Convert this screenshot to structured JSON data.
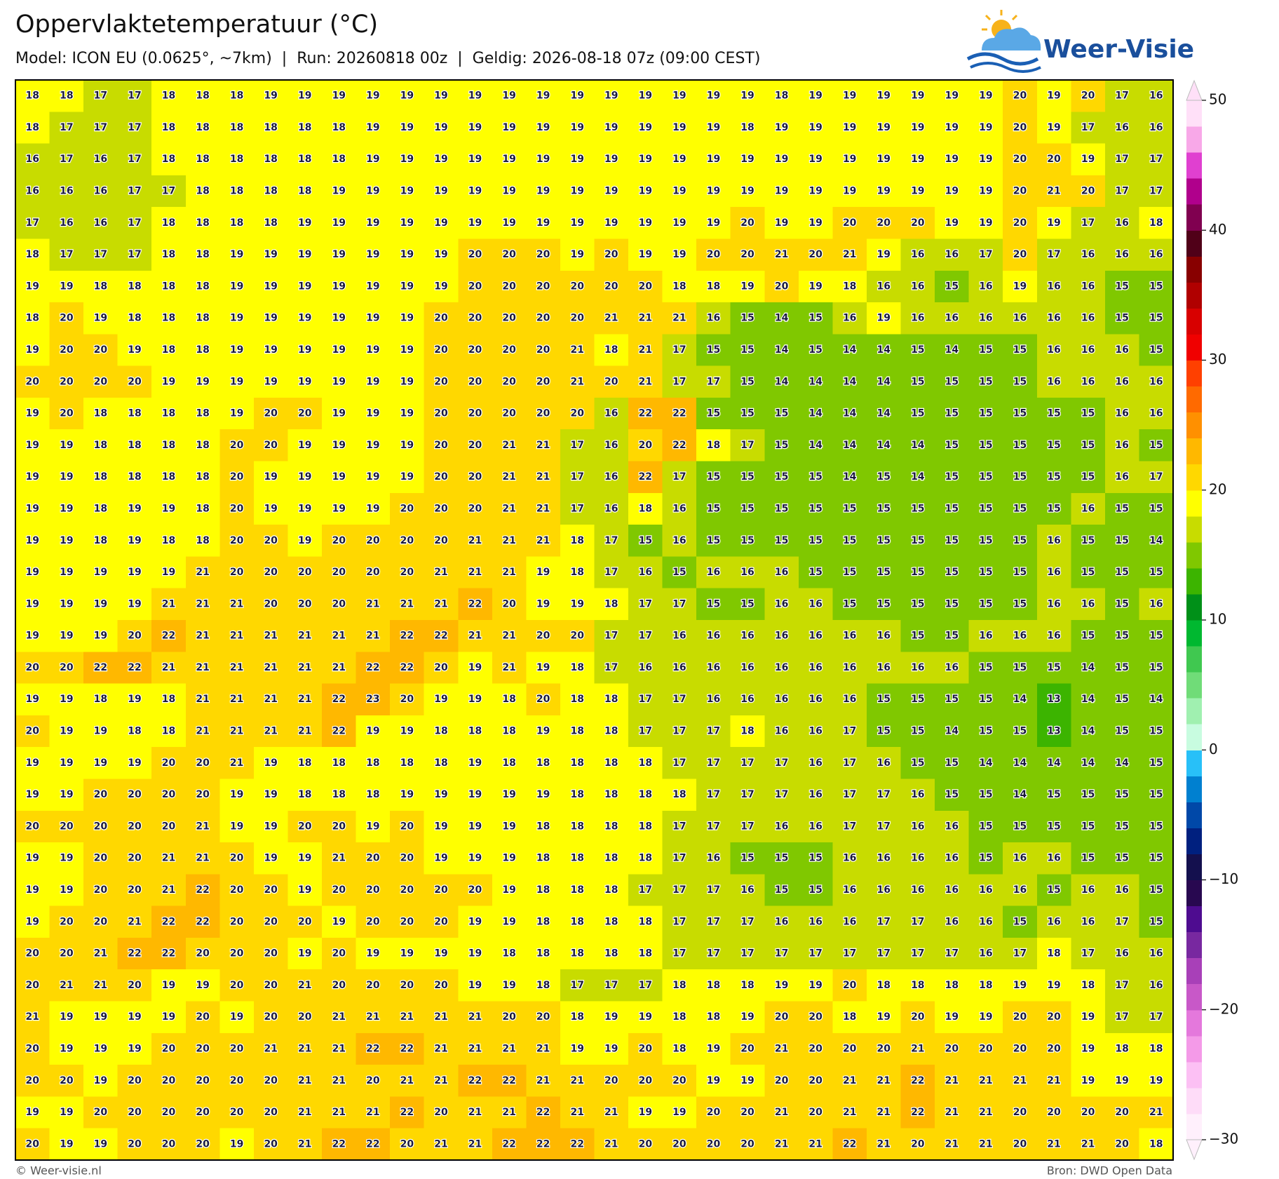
{
  "map": {
    "title": "Oppervlaktetemperatuur (°C)",
    "subtitle": "Model: ICON EU (0.0625°, ~7km)  |  Run: 20260818 00z  |  Geldig: 2026-08-18 07z (09:00 CEST)",
    "brand": "Weer-Visie",
    "footer_left": "© Weer-visie.nl",
    "footer_right": "Bron: DWD Open Data",
    "grid": [
      [
        18,
        18,
        17,
        17,
        18,
        18,
        18,
        19,
        19,
        19,
        19,
        19,
        19,
        19,
        19,
        19,
        19,
        19,
        19,
        19,
        19,
        19,
        18,
        19,
        19,
        19,
        19,
        19,
        19,
        20,
        19,
        20,
        17,
        16
      ],
      [
        18,
        17,
        17,
        17,
        18,
        18,
        18,
        18,
        18,
        18,
        19,
        19,
        19,
        19,
        19,
        19,
        19,
        19,
        19,
        19,
        19,
        18,
        19,
        19,
        19,
        19,
        19,
        19,
        19,
        20,
        19,
        17,
        16,
        16
      ],
      [
        16,
        17,
        16,
        17,
        18,
        18,
        18,
        18,
        18,
        18,
        19,
        19,
        19,
        19,
        19,
        19,
        19,
        19,
        19,
        19,
        19,
        19,
        19,
        19,
        19,
        19,
        19,
        19,
        19,
        20,
        20,
        19,
        17,
        17
      ],
      [
        16,
        16,
        16,
        17,
        17,
        18,
        18,
        18,
        18,
        19,
        19,
        19,
        19,
        19,
        19,
        19,
        19,
        19,
        19,
        19,
        19,
        19,
        19,
        19,
        19,
        19,
        19,
        19,
        19,
        20,
        21,
        20,
        17,
        17
      ],
      [
        17,
        16,
        16,
        17,
        18,
        18,
        18,
        18,
        19,
        19,
        19,
        19,
        19,
        19,
        19,
        19,
        19,
        19,
        19,
        19,
        19,
        20,
        19,
        19,
        20,
        20,
        20,
        19,
        19,
        20,
        19,
        17,
        16,
        18
      ],
      [
        18,
        17,
        17,
        17,
        18,
        18,
        19,
        19,
        19,
        19,
        19,
        19,
        19,
        20,
        20,
        20,
        19,
        20,
        19,
        19,
        20,
        20,
        21,
        20,
        21,
        19,
        16,
        16,
        17,
        20,
        17,
        16,
        16,
        16
      ],
      [
        19,
        19,
        18,
        18,
        18,
        18,
        19,
        19,
        19,
        19,
        19,
        19,
        19,
        20,
        20,
        20,
        20,
        20,
        20,
        18,
        18,
        19,
        20,
        19,
        18,
        16,
        16,
        15,
        16,
        19,
        16,
        16,
        15,
        15
      ],
      [
        18,
        20,
        19,
        18,
        18,
        18,
        19,
        19,
        19,
        19,
        19,
        19,
        20,
        20,
        20,
        20,
        20,
        21,
        21,
        21,
        16,
        15,
        14,
        15,
        16,
        19,
        16,
        16,
        16,
        16,
        16,
        16,
        15,
        15
      ],
      [
        19,
        20,
        20,
        19,
        18,
        18,
        19,
        19,
        19,
        19,
        19,
        19,
        20,
        20,
        20,
        20,
        21,
        18,
        21,
        17,
        15,
        15,
        14,
        15,
        14,
        14,
        15,
        14,
        15,
        15,
        16,
        16,
        16,
        15
      ],
      [
        20,
        20,
        20,
        20,
        19,
        19,
        19,
        19,
        19,
        19,
        19,
        19,
        20,
        20,
        20,
        20,
        21,
        20,
        21,
        17,
        17,
        15,
        14,
        14,
        14,
        14,
        15,
        15,
        15,
        15,
        16,
        16,
        16,
        16
      ],
      [
        19,
        20,
        18,
        18,
        18,
        18,
        19,
        20,
        20,
        19,
        19,
        19,
        20,
        20,
        20,
        20,
        20,
        16,
        22,
        22,
        15,
        15,
        15,
        14,
        14,
        14,
        15,
        15,
        15,
        15,
        15,
        15,
        16,
        16
      ],
      [
        19,
        19,
        18,
        18,
        18,
        18,
        20,
        20,
        19,
        19,
        19,
        19,
        20,
        20,
        21,
        21,
        17,
        16,
        20,
        22,
        18,
        17,
        15,
        14,
        14,
        14,
        14,
        15,
        15,
        15,
        15,
        15,
        16,
        15
      ],
      [
        19,
        19,
        18,
        18,
        18,
        18,
        20,
        19,
        19,
        19,
        19,
        19,
        20,
        20,
        21,
        21,
        17,
        16,
        22,
        17,
        15,
        15,
        15,
        15,
        14,
        15,
        14,
        15,
        15,
        15,
        15,
        15,
        16,
        17
      ],
      [
        19,
        19,
        18,
        19,
        19,
        18,
        20,
        19,
        19,
        19,
        19,
        20,
        20,
        20,
        21,
        21,
        17,
        16,
        18,
        16,
        15,
        15,
        15,
        15,
        15,
        15,
        15,
        15,
        15,
        15,
        15,
        16,
        15,
        15
      ],
      [
        19,
        19,
        18,
        19,
        18,
        18,
        20,
        20,
        19,
        20,
        20,
        20,
        20,
        21,
        21,
        21,
        18,
        17,
        15,
        16,
        15,
        15,
        15,
        15,
        15,
        15,
        15,
        15,
        15,
        15,
        16,
        15,
        15,
        14
      ],
      [
        19,
        19,
        19,
        19,
        19,
        21,
        20,
        20,
        20,
        20,
        20,
        20,
        21,
        21,
        21,
        19,
        18,
        17,
        16,
        15,
        16,
        16,
        16,
        15,
        15,
        15,
        15,
        15,
        15,
        15,
        16,
        15,
        15,
        15
      ],
      [
        19,
        19,
        19,
        19,
        21,
        21,
        21,
        20,
        20,
        20,
        21,
        21,
        21,
        22,
        20,
        19,
        19,
        18,
        17,
        17,
        15,
        15,
        16,
        16,
        15,
        15,
        15,
        15,
        15,
        15,
        16,
        16,
        15,
        16
      ],
      [
        19,
        19,
        19,
        20,
        22,
        21,
        21,
        21,
        21,
        21,
        21,
        22,
        22,
        21,
        21,
        20,
        20,
        17,
        17,
        16,
        16,
        16,
        16,
        16,
        16,
        16,
        15,
        15,
        16,
        16,
        16,
        15,
        15,
        15
      ],
      [
        20,
        20,
        22,
        22,
        21,
        21,
        21,
        21,
        21,
        21,
        22,
        22,
        20,
        19,
        21,
        19,
        18,
        17,
        16,
        16,
        16,
        16,
        16,
        16,
        16,
        16,
        16,
        16,
        15,
        15,
        15,
        14,
        15,
        15
      ],
      [
        19,
        19,
        18,
        19,
        18,
        21,
        21,
        21,
        21,
        22,
        23,
        20,
        19,
        19,
        18,
        20,
        18,
        18,
        17,
        17,
        16,
        16,
        16,
        16,
        16,
        15,
        15,
        15,
        15,
        14,
        13,
        14,
        15,
        14
      ],
      [
        20,
        19,
        19,
        18,
        18,
        21,
        21,
        21,
        21,
        22,
        19,
        19,
        18,
        18,
        18,
        19,
        18,
        18,
        17,
        17,
        17,
        18,
        16,
        16,
        17,
        15,
        15,
        14,
        15,
        15,
        13,
        14,
        15,
        15
      ],
      [
        19,
        19,
        19,
        19,
        20,
        20,
        21,
        19,
        18,
        18,
        18,
        18,
        18,
        19,
        18,
        18,
        18,
        18,
        18,
        17,
        17,
        17,
        17,
        16,
        17,
        16,
        15,
        15,
        14,
        14,
        14,
        14,
        14,
        15
      ],
      [
        19,
        19,
        20,
        20,
        20,
        20,
        19,
        19,
        18,
        18,
        18,
        19,
        19,
        19,
        19,
        19,
        18,
        18,
        18,
        18,
        17,
        17,
        17,
        16,
        17,
        17,
        16,
        15,
        15,
        14,
        15,
        15,
        15,
        15
      ],
      [
        20,
        20,
        20,
        20,
        20,
        21,
        19,
        19,
        20,
        20,
        19,
        20,
        19,
        19,
        19,
        18,
        18,
        18,
        18,
        17,
        17,
        17,
        16,
        16,
        17,
        17,
        16,
        16,
        15,
        15,
        15,
        15,
        15,
        15
      ],
      [
        19,
        19,
        20,
        20,
        21,
        21,
        20,
        19,
        19,
        21,
        20,
        20,
        19,
        19,
        19,
        18,
        18,
        18,
        18,
        17,
        16,
        15,
        15,
        15,
        16,
        16,
        16,
        16,
        15,
        16,
        16,
        15,
        15,
        15
      ],
      [
        19,
        19,
        20,
        20,
        21,
        22,
        20,
        20,
        19,
        20,
        20,
        20,
        20,
        20,
        19,
        18,
        18,
        18,
        17,
        17,
        17,
        16,
        15,
        15,
        16,
        16,
        16,
        16,
        16,
        16,
        15,
        16,
        16,
        15
      ],
      [
        19,
        20,
        20,
        21,
        22,
        22,
        20,
        20,
        20,
        19,
        20,
        20,
        20,
        19,
        19,
        18,
        18,
        18,
        18,
        17,
        17,
        17,
        16,
        16,
        16,
        17,
        17,
        16,
        16,
        15,
        16,
        16,
        17,
        15
      ],
      [
        20,
        20,
        21,
        22,
        22,
        20,
        20,
        20,
        19,
        20,
        19,
        19,
        19,
        19,
        18,
        18,
        18,
        18,
        18,
        17,
        17,
        17,
        17,
        17,
        17,
        17,
        17,
        17,
        16,
        17,
        18,
        17,
        16,
        16
      ],
      [
        20,
        21,
        21,
        20,
        19,
        19,
        20,
        20,
        21,
        20,
        20,
        20,
        20,
        19,
        19,
        18,
        17,
        17,
        17,
        18,
        18,
        18,
        19,
        19,
        20,
        18,
        18,
        18,
        18,
        19,
        19,
        18,
        17,
        16
      ],
      [
        21,
        19,
        19,
        19,
        19,
        20,
        19,
        20,
        20,
        21,
        21,
        21,
        21,
        21,
        20,
        20,
        18,
        19,
        19,
        18,
        18,
        19,
        20,
        20,
        18,
        19,
        20,
        19,
        19,
        20,
        20,
        19,
        17,
        17
      ],
      [
        20,
        19,
        19,
        19,
        20,
        20,
        20,
        21,
        21,
        21,
        22,
        22,
        21,
        21,
        21,
        21,
        19,
        19,
        20,
        18,
        19,
        20,
        21,
        20,
        20,
        20,
        21,
        20,
        20,
        20,
        20,
        19,
        18,
        18
      ],
      [
        20,
        20,
        19,
        20,
        20,
        20,
        20,
        20,
        21,
        21,
        20,
        21,
        21,
        22,
        22,
        21,
        21,
        20,
        20,
        20,
        19,
        19,
        20,
        20,
        21,
        21,
        22,
        21,
        21,
        21,
        21,
        19,
        19,
        19
      ],
      [
        19,
        19,
        20,
        20,
        20,
        20,
        20,
        20,
        21,
        21,
        21,
        22,
        20,
        21,
        21,
        22,
        21,
        21,
        19,
        19,
        20,
        20,
        21,
        20,
        21,
        21,
        22,
        21,
        21,
        20,
        20,
        20,
        20,
        21
      ],
      [
        20,
        19,
        19,
        20,
        20,
        20,
        19,
        20,
        21,
        22,
        22,
        20,
        21,
        21,
        22,
        22,
        22,
        21,
        20,
        20,
        20,
        20,
        21,
        21,
        22,
        21,
        20,
        21,
        21,
        20,
        21,
        21,
        20,
        18
      ]
    ],
    "colorbar": {
      "lim": [
        -30,
        50
      ],
      "colors": [
        "#fff0fc",
        "#fedcf8",
        "#fcc0f4",
        "#f49ae8",
        "#e478dc",
        "#c858c8",
        "#a840b8",
        "#7828a0",
        "#4e0c90",
        "#280850",
        "#14104e",
        "#00207f",
        "#0048a8",
        "#0080d0",
        "#28c0f8",
        "#c8fce0",
        "#a0f0b0",
        "#70dc78",
        "#40c850",
        "#00b830",
        "#009018",
        "#3cb400",
        "#80c800",
        "#c8dc00",
        "#ffff00",
        "#ffd800",
        "#ffb800",
        "#ff9000",
        "#ff6a00",
        "#ff4000",
        "#f00000",
        "#d80000",
        "#b00000",
        "#880000",
        "#500018",
        "#800050",
        "#b0008c",
        "#e040d0",
        "#f8a8e8",
        "#ffe0f8"
      ],
      "ticks": [
        50,
        40,
        30,
        20,
        10,
        0,
        {
          "value": -10,
          "label": "−10"
        },
        {
          "value": -20,
          "label": "−20"
        },
        {
          "value": -30,
          "label": "−30"
        }
      ]
    }
  }
}
